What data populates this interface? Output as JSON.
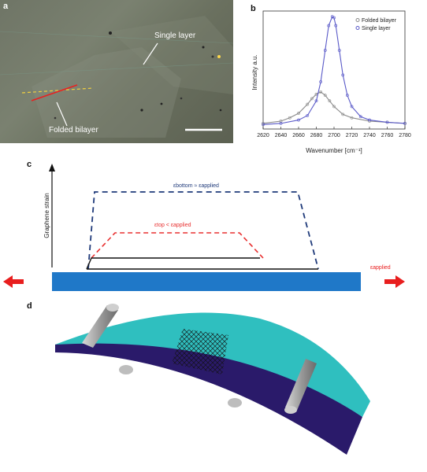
{
  "panels": {
    "a": {
      "label": "a",
      "annotations": {
        "single_layer": "Single layer",
        "folded_bilayer": "Folded bilayer"
      }
    },
    "b": {
      "label": "b"
    },
    "c": {
      "label": "c",
      "ylabel": "Graphene strain",
      "bottom_label": "εbottom ≈ εapplied",
      "top_label": "εtop < εapplied",
      "applied_label": "εapplied"
    },
    "d": {
      "label": "d"
    }
  },
  "chart_data": {
    "type": "line",
    "xlabel": "Wavenumber [cm⁻¹]",
    "ylabel": "Intensity a.u.",
    "xlim": [
      2620,
      2780
    ],
    "ylim": [
      0,
      1.05
    ],
    "xticks": [
      2620,
      2640,
      2660,
      2680,
      2700,
      2720,
      2740,
      2760,
      2780
    ],
    "legend_placement": "top-right",
    "series": [
      {
        "name": "Folded bilayer",
        "color": "#8a8a8a",
        "x": [
          2620,
          2640,
          2650,
          2660,
          2670,
          2675,
          2680,
          2685,
          2690,
          2695,
          2700,
          2710,
          2720,
          2740,
          2760,
          2780
        ],
        "y": [
          0.05,
          0.07,
          0.1,
          0.14,
          0.22,
          0.27,
          0.31,
          0.33,
          0.3,
          0.25,
          0.2,
          0.13,
          0.1,
          0.07,
          0.06,
          0.05
        ]
      },
      {
        "name": "Single layer",
        "color": "#5a5ac8",
        "x": [
          2620,
          2640,
          2660,
          2670,
          2680,
          2685,
          2690,
          2694,
          2698,
          2700,
          2702,
          2706,
          2710,
          2715,
          2720,
          2730,
          2740,
          2760,
          2780
        ],
        "y": [
          0.04,
          0.05,
          0.08,
          0.12,
          0.25,
          0.42,
          0.7,
          0.92,
          1.0,
          0.99,
          0.92,
          0.7,
          0.48,
          0.3,
          0.2,
          0.11,
          0.08,
          0.06,
          0.05
        ]
      }
    ]
  },
  "colors": {
    "bottom_curve": "#1f3a7a",
    "top_curve": "#e83030",
    "substrate": "#1f78c8",
    "arrow": "#e81e1e",
    "beam_top": "#2fbfbf",
    "beam_side": "#2a1a6a"
  }
}
